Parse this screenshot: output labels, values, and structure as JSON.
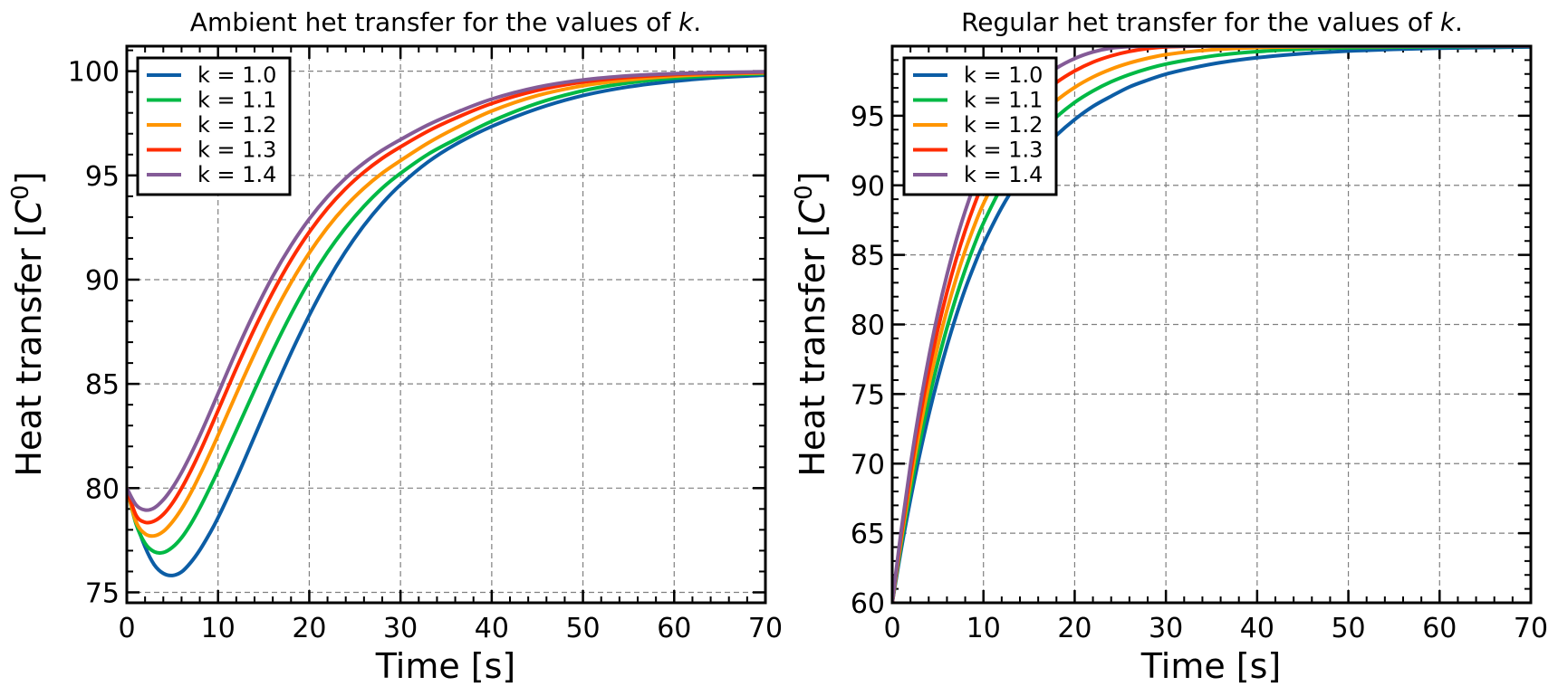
{
  "chart_data": [
    {
      "type": "line",
      "title": "Ambient het transfer for the values of",
      "title_var": "k",
      "xlabel": "Time [s]",
      "ylabel": "Heat transfer [",
      "ylabel_var": "C",
      "ylabel_sup": "0",
      "ylabel_end": "]",
      "xlim": [
        0,
        70
      ],
      "ylim": [
        74.5,
        101.2
      ],
      "xticks": [
        "0",
        "10",
        "20",
        "30",
        "40",
        "50",
        "60",
        "70"
      ],
      "yticks": [
        "75",
        "80",
        "85",
        "90",
        "95",
        "100"
      ],
      "grid": true,
      "legend_position": "top-left",
      "series": [
        {
          "name": "k = 1.0",
          "color": "#0C5DA5",
          "k": 1.0
        },
        {
          "name": "k = 1.1",
          "color": "#00B945",
          "k": 1.1
        },
        {
          "name": "k = 1.2",
          "color": "#FF9500",
          "k": 1.2
        },
        {
          "name": "k = 1.3",
          "color": "#FF2C00",
          "k": 1.3
        },
        {
          "name": "k = 1.4",
          "color": "#845B97",
          "k": 1.4
        }
      ],
      "x": [
        0,
        1,
        2,
        3,
        4,
        5,
        6,
        7,
        8,
        9,
        10,
        12,
        14,
        16,
        18,
        20,
        22,
        24,
        26,
        28,
        30,
        33,
        36,
        40,
        45,
        50,
        55,
        60,
        65,
        70
      ],
      "series_values": [
        [
          80.0,
          78.41,
          77.18,
          76.33,
          75.91,
          75.81,
          75.98,
          76.43,
          77.03,
          77.76,
          78.58,
          80.46,
          82.48,
          84.52,
          86.48,
          88.29,
          89.93,
          91.36,
          92.6,
          93.66,
          94.55,
          95.64,
          96.48,
          97.35,
          98.2,
          98.83,
          99.25,
          99.52,
          99.7,
          99.81
        ],
        [
          80.0,
          78.3,
          77.35,
          76.95,
          76.91,
          77.16,
          77.62,
          78.27,
          79.05,
          79.92,
          80.84,
          82.76,
          84.7,
          86.59,
          88.34,
          89.93,
          91.31,
          92.5,
          93.52,
          94.39,
          95.1,
          96.01,
          96.72,
          97.6,
          98.46,
          99.06,
          99.44,
          99.67,
          99.8,
          99.88
        ],
        [
          80.0,
          78.4,
          77.81,
          77.71,
          77.92,
          78.38,
          79.0,
          79.76,
          80.63,
          81.56,
          82.53,
          84.52,
          86.44,
          88.25,
          89.86,
          91.28,
          92.5,
          93.53,
          94.39,
          95.11,
          95.71,
          96.55,
          97.26,
          98.09,
          98.83,
          99.3,
          99.58,
          99.76,
          99.86,
          99.92
        ],
        [
          80.0,
          78.71,
          78.36,
          78.42,
          78.74,
          79.28,
          79.99,
          80.82,
          81.73,
          82.71,
          83.72,
          85.74,
          87.65,
          89.39,
          90.94,
          92.28,
          93.42,
          94.37,
          95.16,
          95.82,
          96.37,
          97.12,
          97.74,
          98.45,
          99.08,
          99.48,
          99.71,
          99.84,
          99.91,
          99.95
        ],
        [
          80.0,
          79.2,
          78.95,
          79.05,
          79.44,
          80.02,
          80.75,
          81.6,
          82.52,
          83.51,
          84.53,
          86.56,
          88.45,
          90.16,
          91.64,
          92.91,
          93.98,
          94.87,
          95.6,
          96.21,
          96.72,
          97.42,
          98.0,
          98.66,
          99.23,
          99.58,
          99.78,
          99.88,
          99.94,
          99.97
        ]
      ]
    },
    {
      "type": "line",
      "title": "Regular het transfer for the values of",
      "title_var": "k",
      "xlabel": "Time [s]",
      "ylabel": "Heat transfer [",
      "ylabel_var": "C",
      "ylabel_sup": "0",
      "ylabel_end": "]",
      "xlim": [
        0,
        70
      ],
      "ylim": [
        60,
        100
      ],
      "xticks": [
        "0",
        "10",
        "20",
        "30",
        "40",
        "50",
        "60",
        "70"
      ],
      "yticks": [
        "60",
        "65",
        "70",
        "75",
        "80",
        "85",
        "90",
        "95"
      ],
      "grid": true,
      "legend_position": "top-left",
      "series": [
        {
          "name": "k = 1.0",
          "color": "#0C5DA5",
          "k": 1.0
        },
        {
          "name": "k = 1.1",
          "color": "#00B945",
          "k": 1.1
        },
        {
          "name": "k = 1.2",
          "color": "#FF9500",
          "k": 1.2
        },
        {
          "name": "k = 1.3",
          "color": "#FF2C00",
          "k": 1.3
        },
        {
          "name": "k = 1.4",
          "color": "#845B97",
          "k": 1.4
        }
      ],
      "x": [
        0,
        1,
        2,
        3,
        4,
        5,
        6,
        7,
        8,
        9,
        10,
        12,
        14,
        16,
        18,
        20,
        22,
        24,
        26,
        28,
        30,
        33,
        36,
        40,
        45,
        50,
        55,
        60,
        65,
        70
      ],
      "series_values": [
        [
          60.0,
          63.9,
          67.42,
          70.62,
          73.5,
          76.11,
          78.47,
          80.61,
          82.55,
          84.26,
          85.8,
          88.4,
          90.5,
          92.26,
          93.6,
          94.73,
          95.67,
          96.4,
          97.07,
          97.56,
          97.99,
          98.45,
          98.82,
          99.17,
          99.46,
          99.65,
          99.77,
          99.85,
          99.9,
          99.94
        ],
        [
          60.0,
          64.26,
          68.07,
          71.49,
          74.56,
          77.3,
          79.76,
          81.96,
          83.94,
          85.71,
          87.29,
          89.89,
          91.96,
          93.61,
          94.91,
          95.96,
          96.78,
          97.44,
          97.96,
          98.38,
          98.71,
          99.08,
          99.37,
          99.61,
          99.79,
          99.88,
          99.93,
          99.96,
          99.98,
          99.99
        ],
        [
          60.0,
          64.6,
          68.7,
          72.35,
          75.6,
          78.47,
          81.03,
          83.29,
          85.31,
          87.09,
          88.68,
          91.27,
          93.29,
          94.86,
          96.09,
          97.04,
          97.78,
          98.35,
          98.79,
          99.13,
          99.39,
          99.63,
          99.78,
          99.9,
          99.96,
          99.98,
          99.99,
          100.0,
          100.0,
          100.0
        ],
        [
          60.0,
          64.94,
          69.32,
          73.2,
          76.63,
          79.65,
          82.32,
          84.67,
          86.75,
          88.59,
          90.21,
          92.81,
          94.78,
          96.27,
          97.39,
          98.22,
          98.85,
          99.3,
          99.62,
          99.83,
          99.95,
          100.0,
          100.0,
          100.0,
          100.0,
          100.0,
          100.0,
          100.0,
          100.0,
          100.0
        ],
        [
          60.0,
          65.26,
          69.9,
          74.0,
          77.61,
          80.79,
          83.57,
          86.01,
          88.15,
          90.03,
          91.66,
          94.22,
          96.09,
          97.45,
          98.42,
          99.11,
          99.58,
          99.86,
          99.97,
          100.0,
          100.0,
          100.0,
          100.0,
          100.0,
          100.0,
          100.0,
          100.0,
          100.0,
          100.0,
          100.0
        ]
      ]
    }
  ]
}
